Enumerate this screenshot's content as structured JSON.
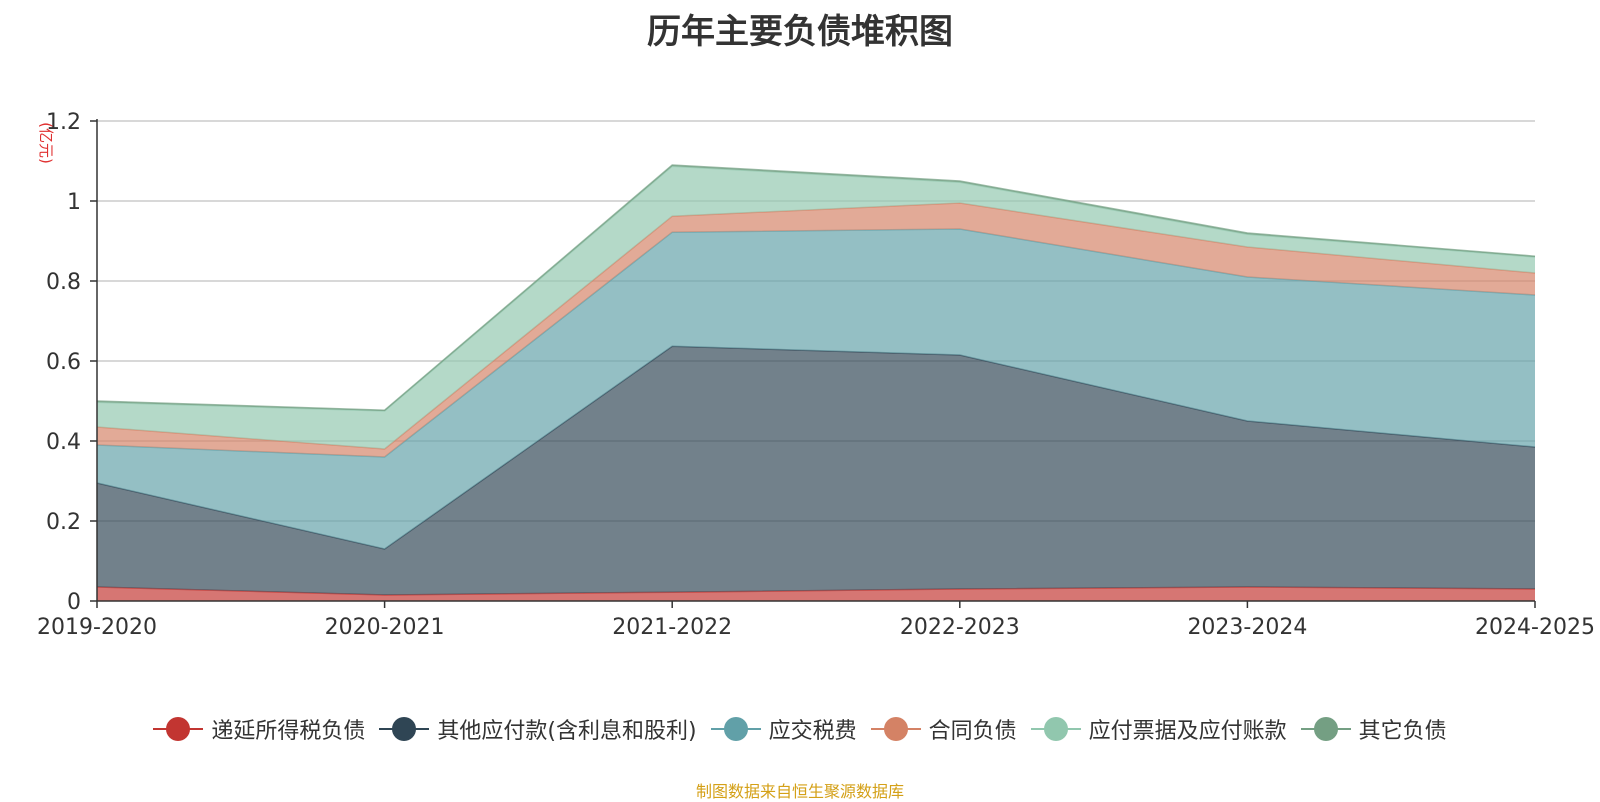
{
  "chart_data": {
    "type": "area",
    "stacked": true,
    "title": "历年主要负债堆积图",
    "unit_label": "(亿元)",
    "categories": [
      "2019-2020",
      "2020-2021",
      "2021-2022",
      "2022-2023",
      "2023-2024",
      "2024-2025"
    ],
    "ylim": [
      0,
      1.2
    ],
    "yticks": [
      "0",
      "0.2",
      "0.4",
      "0.6",
      "0.8",
      "1",
      "1.2"
    ],
    "grid": true,
    "legend_position": "bottom",
    "series": [
      {
        "name": "递延所得税负债",
        "color": "#c23531",
        "values": [
          0.035,
          0.015,
          0.022,
          0.03,
          0.035,
          0.03
        ]
      },
      {
        "name": "其他应付款(含利息和股利)",
        "color": "#2f4554",
        "values": [
          0.26,
          0.115,
          0.615,
          0.585,
          0.415,
          0.355
        ]
      },
      {
        "name": "应交税费",
        "color": "#61a0a8",
        "values": [
          0.095,
          0.23,
          0.285,
          0.315,
          0.36,
          0.38
        ]
      },
      {
        "name": "合同负债",
        "color": "#d48265",
        "values": [
          0.045,
          0.02,
          0.04,
          0.065,
          0.075,
          0.055
        ]
      },
      {
        "name": "应付票据及应付账款",
        "color": "#91c7ae",
        "values": [
          0.062,
          0.095,
          0.125,
          0.052,
          0.032,
          0.04
        ]
      },
      {
        "name": "其它负债",
        "color": "#749f83",
        "values": [
          0.003,
          0.002,
          0.003,
          0.003,
          0.003,
          0.002
        ]
      }
    ],
    "source_note": "制图数据来自恒生聚源数据库"
  }
}
